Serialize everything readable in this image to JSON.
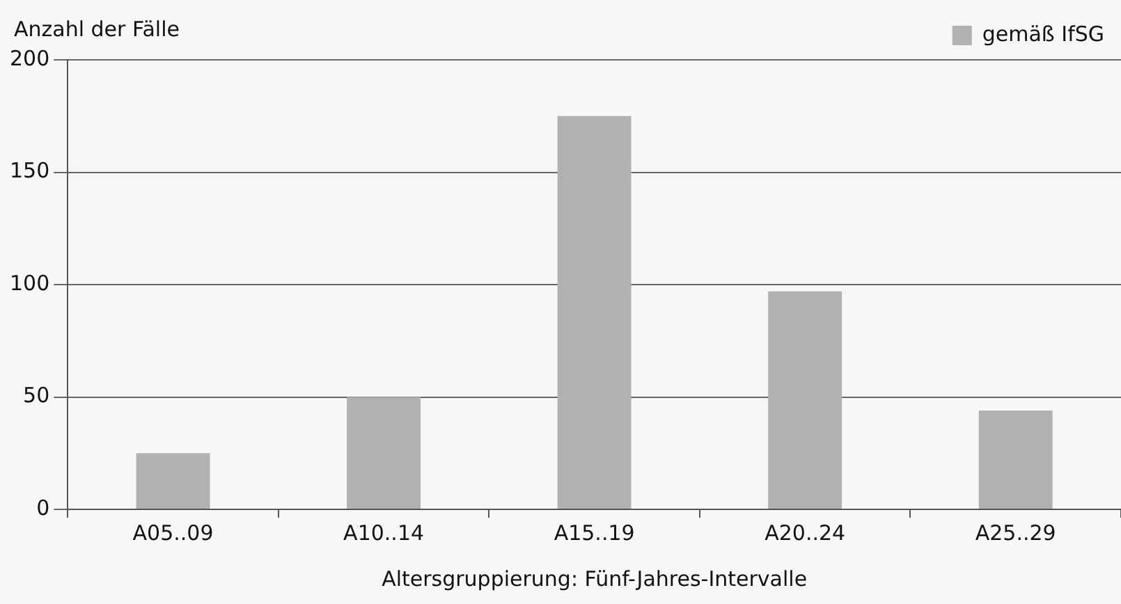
{
  "chart_data": {
    "type": "bar",
    "ylabel": "Anzahl der Fälle",
    "xlabel": "Altersgruppierung: Fünf-Jahres-Intervalle",
    "categories": [
      "A05..09",
      "A10..14",
      "A15..19",
      "A20..24",
      "A25..29"
    ],
    "series": [
      {
        "name": "gemäß IfSG",
        "color": "#b0b1b3",
        "values": [
          25,
          50,
          175,
          97,
          44
        ]
      }
    ],
    "ylim": [
      0,
      200
    ],
    "yticks": [
      0,
      50,
      100,
      150,
      200
    ],
    "grid": "y",
    "legend": "top right"
  }
}
